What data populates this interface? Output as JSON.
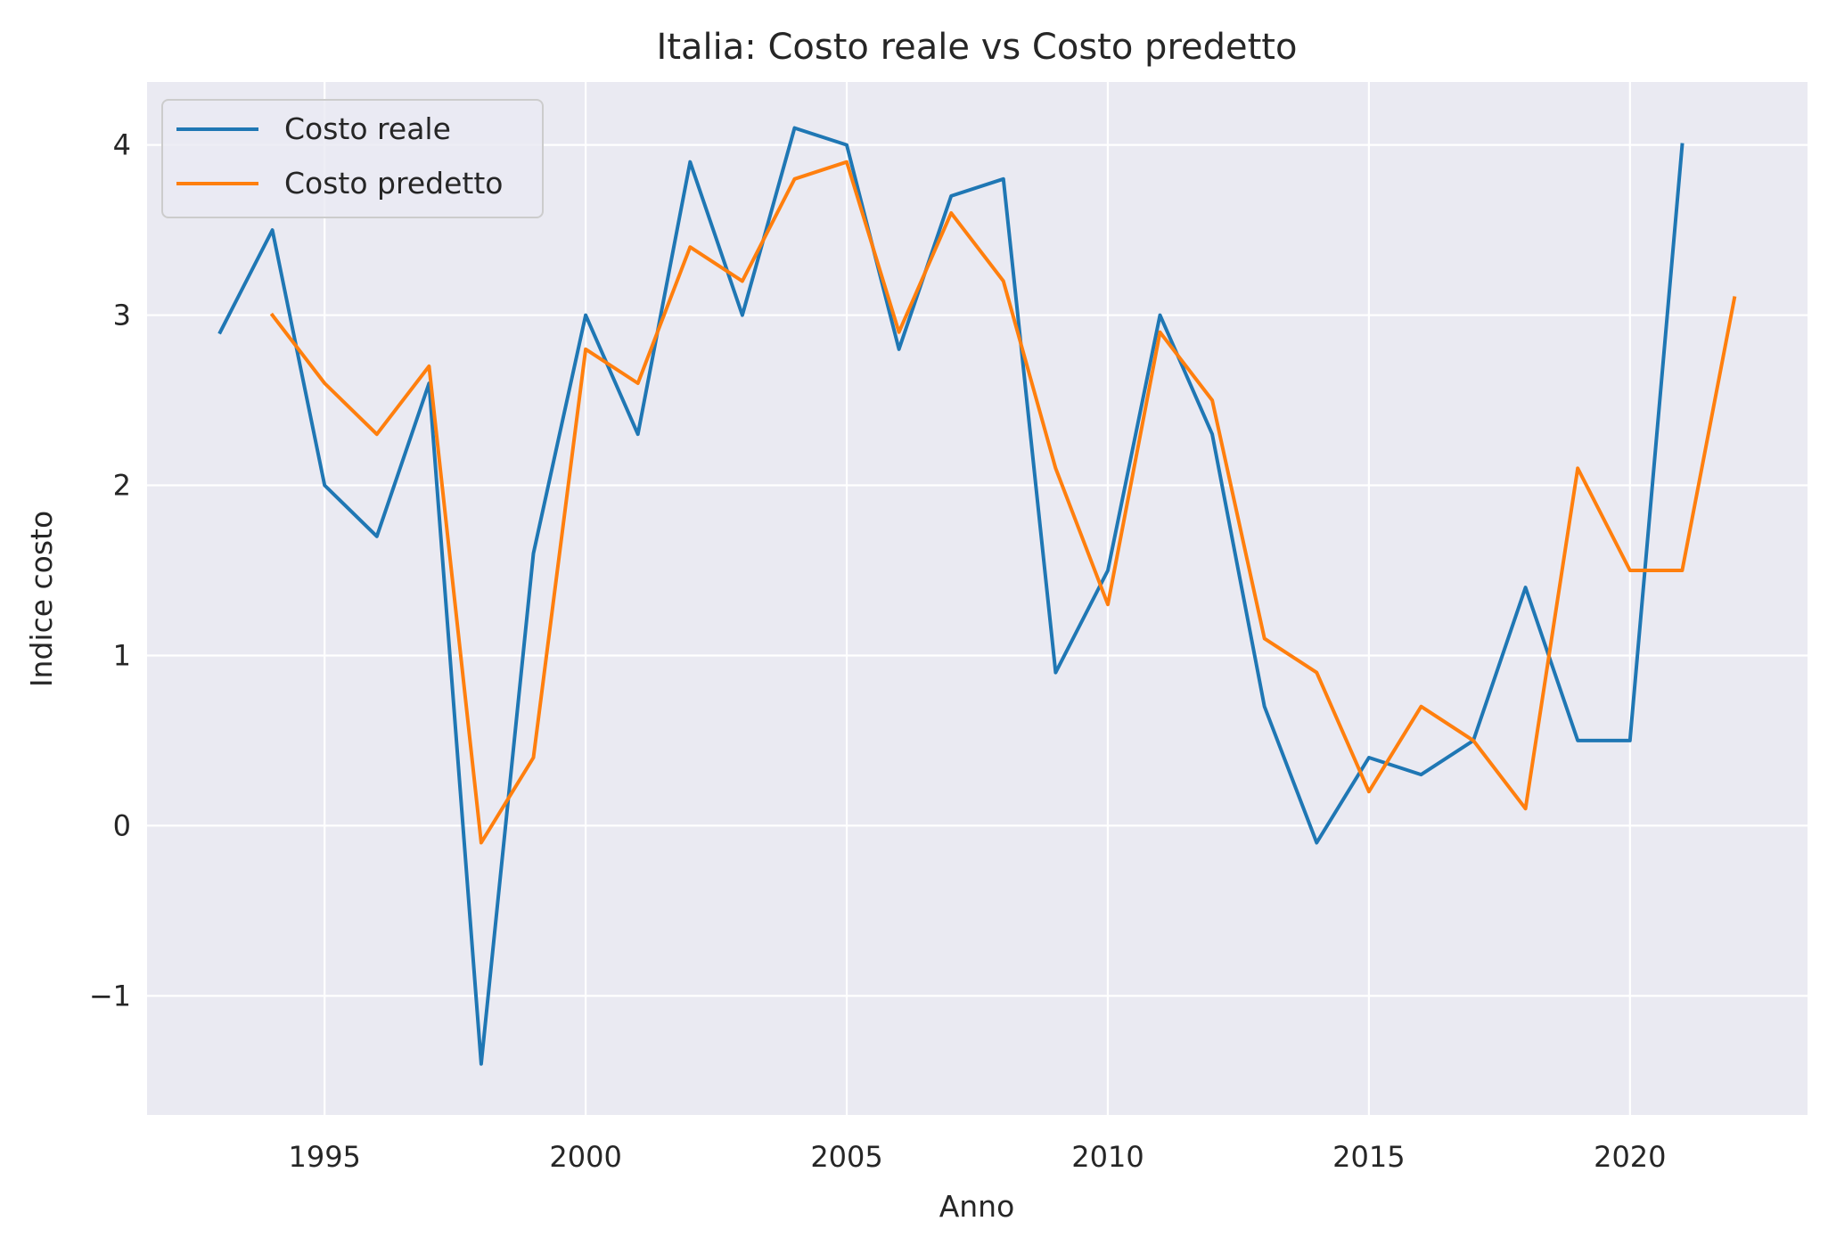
{
  "chart_data": {
    "type": "line",
    "title": "Italia: Costo reale vs Costo predetto",
    "xlabel": "Anno",
    "ylabel": "Indice costo",
    "xlim": [
      1991.6,
      2023.4
    ],
    "ylim": [
      -1.7,
      4.37
    ],
    "xticks": [
      1995,
      2000,
      2005,
      2010,
      2015,
      2020
    ],
    "xtick_labels": [
      "1995",
      "2000",
      "2005",
      "2010",
      "2015",
      "2020"
    ],
    "yticks": [
      -1,
      0,
      1,
      2,
      3,
      4
    ],
    "ytick_labels": [
      "−1",
      "0",
      "1",
      "2",
      "3",
      "4"
    ],
    "grid": true,
    "legend_position": "upper-left",
    "series": [
      {
        "name": "Costo reale",
        "color": "#1f77b4",
        "x": [
          1993,
          1994,
          1995,
          1996,
          1997,
          1998,
          1999,
          2000,
          2001,
          2002,
          2003,
          2004,
          2005,
          2006,
          2007,
          2008,
          2009,
          2010,
          2011,
          2012,
          2013,
          2014,
          2015,
          2016,
          2017,
          2018,
          2019,
          2020,
          2021
        ],
        "values": [
          2.9,
          3.5,
          2.0,
          1.7,
          2.6,
          -1.4,
          1.6,
          3.0,
          2.3,
          3.9,
          3.0,
          4.1,
          4.0,
          2.8,
          3.7,
          3.8,
          0.9,
          1.5,
          3.0,
          2.3,
          0.7,
          -0.1,
          0.4,
          0.3,
          0.5,
          1.4,
          0.5,
          0.5,
          4.0
        ]
      },
      {
        "name": "Costo predetto",
        "color": "#ff7f0e",
        "x": [
          1994,
          1995,
          1996,
          1997,
          1998,
          1999,
          2000,
          2001,
          2002,
          2003,
          2004,
          2005,
          2006,
          2007,
          2008,
          2009,
          2010,
          2011,
          2012,
          2013,
          2014,
          2015,
          2016,
          2017,
          2018,
          2019,
          2020,
          2021,
          2022
        ],
        "values": [
          3.0,
          2.6,
          2.3,
          2.7,
          -0.1,
          0.4,
          2.8,
          2.6,
          3.4,
          3.2,
          3.8,
          3.9,
          2.9,
          3.6,
          3.2,
          2.1,
          1.3,
          2.9,
          2.5,
          1.1,
          0.9,
          0.2,
          0.7,
          0.5,
          0.1,
          2.1,
          1.5,
          1.5,
          3.1
        ]
      }
    ]
  }
}
